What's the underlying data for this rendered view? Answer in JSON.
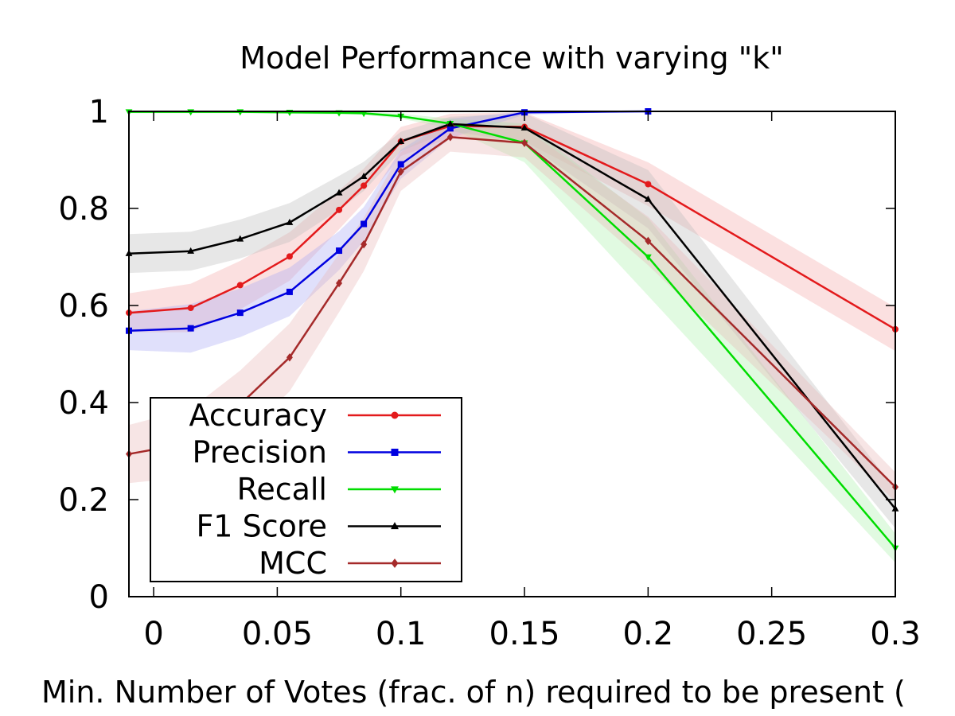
{
  "chart_data": {
    "type": "line",
    "title": "Model Performance with varying \"k\"",
    "xlabel": "Min. Number of Votes (frac. of n) required to be present (",
    "ylabel": "",
    "xlim": [
      -0.01,
      0.3
    ],
    "ylim": [
      0,
      1
    ],
    "x_ticks": [
      "0",
      "0.05",
      "0.1",
      "0.15",
      "0.2",
      "0.25",
      "0.3"
    ],
    "y_ticks": [
      "0",
      "0.2",
      "0.4",
      "0.6",
      "0.8",
      "1"
    ],
    "grid": false,
    "legend_position": "bottom-left",
    "series": [
      {
        "name": "Accuracy",
        "color": "#e31a1c",
        "band_color": "#f4a6a6",
        "marker": "circle",
        "x": [
          -0.01,
          0.015,
          0.035,
          0.055,
          0.075,
          0.085,
          0.1,
          0.12,
          0.15,
          0.2,
          0.3
        ],
        "y": [
          0.585,
          0.595,
          0.642,
          0.701,
          0.797,
          0.847,
          0.938,
          0.97,
          0.968,
          0.85,
          0.551
        ],
        "band": [
          0.04,
          0.05,
          0.05,
          0.05,
          0.04,
          0.035,
          0.03,
          0.025,
          0.03,
          0.045,
          0.045
        ]
      },
      {
        "name": "Precision",
        "color": "#0000e0",
        "band_color": "#a6a6f4",
        "marker": "square",
        "x": [
          -0.01,
          0.015,
          0.035,
          0.055,
          0.075,
          0.085,
          0.1,
          0.12,
          0.15,
          0.2
        ],
        "y": [
          0.548,
          0.553,
          0.585,
          0.628,
          0.713,
          0.768,
          0.891,
          0.965,
          0.998,
          1.0
        ],
        "band": [
          0.04,
          0.05,
          0.05,
          0.05,
          0.04,
          0.035,
          0.03,
          0.02,
          0.005,
          0.0
        ]
      },
      {
        "name": "Recall",
        "color": "#00dd00",
        "band_color": "#aaf0aa",
        "marker": "triangle-down",
        "x": [
          -0.01,
          0.015,
          0.035,
          0.055,
          0.075,
          0.085,
          0.1,
          0.12,
          0.15,
          0.2,
          0.3
        ],
        "y": [
          0.999,
          0.999,
          0.999,
          0.998,
          0.997,
          0.996,
          0.99,
          0.975,
          0.935,
          0.7,
          0.1
        ],
        "band": [
          0.003,
          0.003,
          0.003,
          0.003,
          0.003,
          0.003,
          0.005,
          0.01,
          0.04,
          0.08,
          0.03
        ]
      },
      {
        "name": "F1 Score",
        "color": "#000000",
        "band_color": "#bbbbbb",
        "marker": "triangle-up",
        "x": [
          -0.01,
          0.015,
          0.035,
          0.055,
          0.075,
          0.085,
          0.1,
          0.12,
          0.15,
          0.2,
          0.3
        ],
        "y": [
          0.707,
          0.712,
          0.737,
          0.771,
          0.832,
          0.866,
          0.938,
          0.974,
          0.966,
          0.819,
          0.181
        ],
        "band": [
          0.04,
          0.04,
          0.04,
          0.04,
          0.035,
          0.03,
          0.02,
          0.015,
          0.03,
          0.06,
          0.04
        ]
      },
      {
        "name": "MCC",
        "color": "#a52a2a",
        "band_color": "#e8b4b4",
        "marker": "diamond",
        "x": [
          -0.01,
          0.015,
          0.035,
          0.055,
          0.075,
          0.085,
          0.1,
          0.12,
          0.15,
          0.2,
          0.3
        ],
        "y": [
          0.294,
          0.317,
          0.396,
          0.493,
          0.646,
          0.726,
          0.876,
          0.947,
          0.935,
          0.733,
          0.226
        ],
        "band": [
          0.06,
          0.07,
          0.07,
          0.07,
          0.06,
          0.055,
          0.04,
          0.03,
          0.03,
          0.05,
          0.03
        ]
      }
    ]
  }
}
